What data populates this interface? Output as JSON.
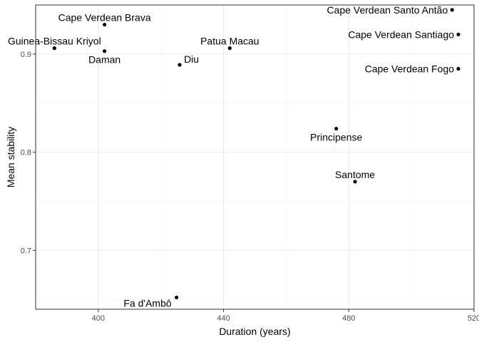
{
  "chart_data": {
    "type": "scatter",
    "title": "",
    "xlabel": "Duration (years)",
    "ylabel": "Mean stability",
    "xlim": [
      380,
      520
    ],
    "ylim": [
      0.64,
      0.95
    ],
    "x_ticks": [
      400,
      440,
      480,
      520
    ],
    "y_ticks": [
      0.7,
      0.8,
      0.9
    ],
    "x_tick_labels": [
      "400",
      "440",
      "480",
      "520"
    ],
    "y_tick_labels": [
      "0.7",
      "0.8",
      "0.9"
    ],
    "grid": true,
    "point_color": "#000000",
    "points": [
      {
        "label": "Cape Verdean Brava",
        "x": 402,
        "y": 0.93,
        "label_pos": "above"
      },
      {
        "label": "Guinea-Bissau Kriyol",
        "x": 386,
        "y": 0.906,
        "label_pos": "above"
      },
      {
        "label": "Daman",
        "x": 402,
        "y": 0.903,
        "label_pos": "below"
      },
      {
        "label": "Diu",
        "x": 426,
        "y": 0.889,
        "label_pos": "upper-right"
      },
      {
        "label": "Patua Macau",
        "x": 442,
        "y": 0.906,
        "label_pos": "above"
      },
      {
        "label": "Cape Verdean Santo Antão",
        "x": 513,
        "y": 0.945,
        "label_pos": "left"
      },
      {
        "label": "Cape Verdean Santiago",
        "x": 515,
        "y": 0.92,
        "label_pos": "left"
      },
      {
        "label": "Cape Verdean Fogo",
        "x": 515,
        "y": 0.885,
        "label_pos": "left"
      },
      {
        "label": "Principense",
        "x": 476,
        "y": 0.824,
        "label_pos": "below"
      },
      {
        "label": "Santome",
        "x": 482,
        "y": 0.77,
        "label_pos": "above"
      },
      {
        "label": "Fa d'Ambô",
        "x": 425,
        "y": 0.652,
        "label_pos": "lower-left"
      }
    ]
  }
}
